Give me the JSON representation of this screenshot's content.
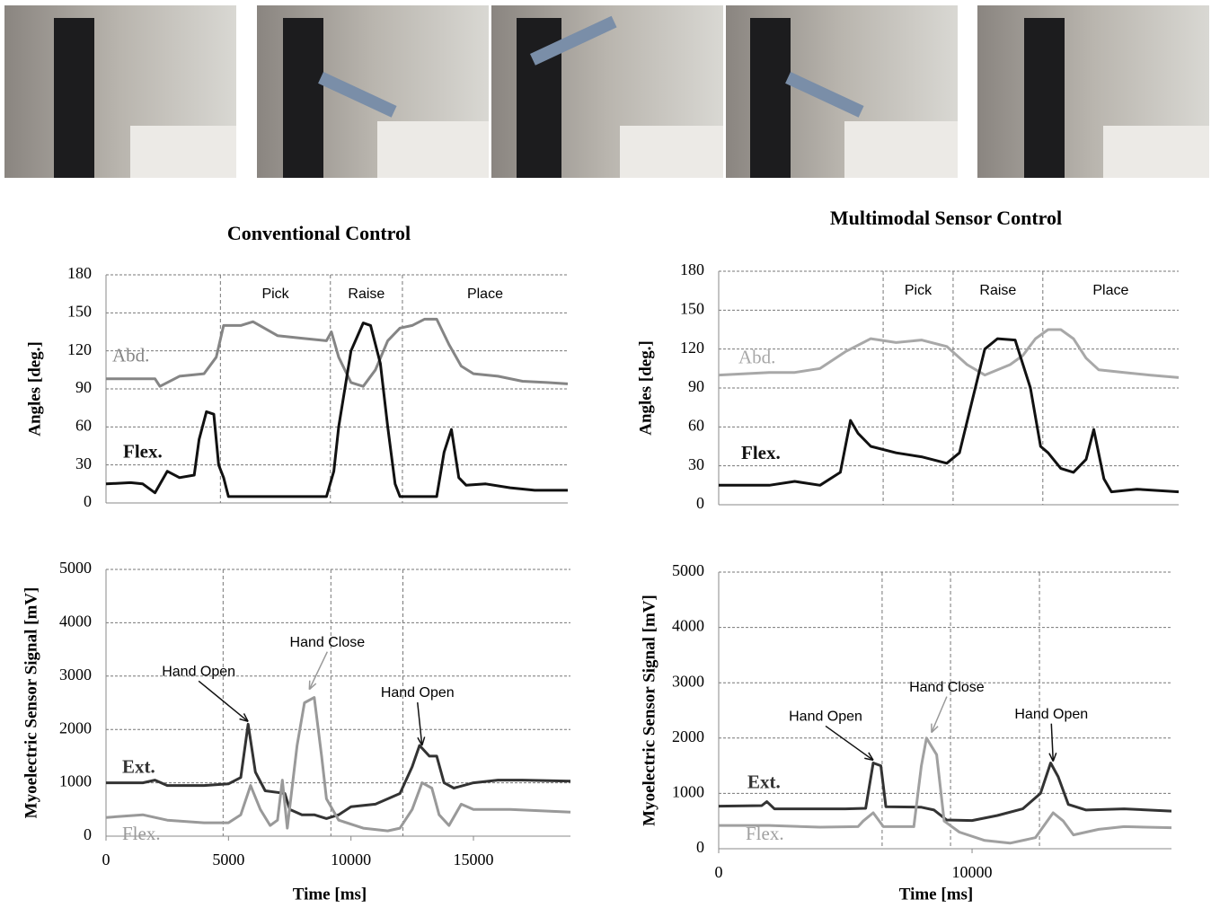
{
  "chart_data": [
    {
      "type": "line",
      "title": "Conventional Control",
      "ylabel": "Angles [deg.]",
      "xlim": [
        0,
        18850
      ],
      "ylim": [
        0,
        180
      ],
      "yticks": [
        0,
        30,
        60,
        90,
        120,
        150,
        180
      ],
      "grid": true,
      "vlines": [
        4670,
        9160,
        12100
      ],
      "phase_labels": [
        "Pick",
        "Raise",
        "Place"
      ],
      "series": [
        {
          "name": "Abd.",
          "color": "#858585",
          "x": [
            0,
            2000,
            2200,
            3000,
            4000,
            4500,
            4800,
            5500,
            6000,
            7000,
            8000,
            9000,
            9200,
            9500,
            10000,
            10500,
            11000,
            11500,
            12000,
            12500,
            13000,
            13500,
            14000,
            14500,
            15000,
            16000,
            17000,
            18000,
            18850
          ],
          "values": [
            98,
            98,
            92,
            100,
            102,
            115,
            140,
            140,
            143,
            132,
            130,
            128,
            135,
            115,
            95,
            92,
            105,
            128,
            138,
            140,
            145,
            145,
            125,
            108,
            102,
            100,
            96,
            95,
            94
          ]
        },
        {
          "name": "Flex.",
          "color": "#111111",
          "x": [
            0,
            1000,
            1500,
            2000,
            2500,
            3000,
            3600,
            3800,
            4100,
            4400,
            4600,
            4800,
            5000,
            6000,
            7000,
            8000,
            8500,
            9000,
            9300,
            9500,
            10000,
            10500,
            10800,
            11200,
            11500,
            11800,
            12000,
            13000,
            13500,
            13800,
            14100,
            14400,
            14700,
            15500,
            16500,
            17500,
            18850
          ],
          "values": [
            15,
            16,
            15,
            8,
            25,
            20,
            22,
            50,
            72,
            70,
            30,
            20,
            5,
            5,
            5,
            5,
            5,
            5,
            25,
            60,
            120,
            142,
            140,
            110,
            60,
            15,
            5,
            5,
            5,
            40,
            58,
            20,
            14,
            15,
            12,
            10,
            10
          ]
        }
      ]
    },
    {
      "type": "line",
      "title": "Multimodal Sensor Control",
      "ylabel": "Angles [deg.]",
      "xlim": [
        0,
        18150
      ],
      "ylim": [
        0,
        180
      ],
      "yticks": [
        0,
        30,
        60,
        90,
        120,
        150,
        180
      ],
      "grid": true,
      "vlines": [
        6490,
        9250,
        12790
      ],
      "phase_labels": [
        "Pick",
        "Raise",
        "Place"
      ],
      "series": [
        {
          "name": "Abd.",
          "color": "#a8a8a8",
          "x": [
            0,
            2000,
            3000,
            4000,
            5000,
            6000,
            7000,
            8000,
            9000,
            9800,
            10500,
            11500,
            12000,
            12500,
            13000,
            13500,
            14000,
            14500,
            15000,
            16000,
            17000,
            18150
          ],
          "values": [
            100,
            102,
            102,
            105,
            118,
            128,
            125,
            127,
            122,
            108,
            100,
            108,
            115,
            128,
            135,
            135,
            128,
            113,
            104,
            102,
            100,
            98
          ]
        },
        {
          "name": "Flex.",
          "color": "#111111",
          "x": [
            0,
            2000,
            3000,
            4000,
            4800,
            5200,
            5500,
            6000,
            7000,
            8000,
            9000,
            9500,
            10000,
            10500,
            11000,
            11700,
            12300,
            12700,
            13000,
            13500,
            14000,
            14500,
            14800,
            15200,
            15500,
            16500,
            18150
          ],
          "values": [
            15,
            15,
            18,
            15,
            25,
            65,
            55,
            45,
            40,
            37,
            32,
            40,
            80,
            120,
            128,
            127,
            90,
            45,
            40,
            28,
            25,
            35,
            58,
            20,
            10,
            12,
            10
          ]
        }
      ]
    },
    {
      "type": "line",
      "ylabel": "Myoelectric Sensor Signal [mV]",
      "xlabel": "Time [ms]",
      "xlim": [
        0,
        18960
      ],
      "ylim": [
        0,
        5000
      ],
      "yticks": [
        0,
        1000,
        2000,
        3000,
        4000,
        5000
      ],
      "xticks": [
        0,
        5000,
        10000,
        15000
      ],
      "grid": true,
      "vlines": [
        4780,
        9180,
        12120
      ],
      "annotations": [
        {
          "text": "Hand Open",
          "x": 5800,
          "y": 2150
        },
        {
          "text": "Hand Close",
          "x": 8300,
          "y": 2750
        },
        {
          "text": "Hand Open",
          "x": 12900,
          "y": 1700
        }
      ],
      "series": [
        {
          "name": "Ext.",
          "color": "#333333",
          "x": [
            0,
            1500,
            2000,
            2500,
            4000,
            5000,
            5500,
            5800,
            6100,
            6500,
            7000,
            7300,
            7500,
            8000,
            8500,
            9000,
            9500,
            10000,
            11000,
            12000,
            12500,
            12800,
            13200,
            13500,
            13800,
            14200,
            15000,
            16000,
            17000,
            18960
          ],
          "values": [
            1000,
            1000,
            1050,
            950,
            950,
            980,
            1100,
            2100,
            1200,
            850,
            820,
            800,
            500,
            400,
            400,
            330,
            400,
            550,
            600,
            800,
            1300,
            1700,
            1500,
            1500,
            1000,
            900,
            1000,
            1050,
            1050,
            1030
          ]
        },
        {
          "name": "Flex.",
          "color": "#999999",
          "x": [
            0,
            1500,
            2500,
            4000,
            5000,
            5500,
            5900,
            6300,
            6700,
            7000,
            7200,
            7400,
            7800,
            8100,
            8500,
            8800,
            9000,
            9500,
            10500,
            11500,
            12000,
            12500,
            12900,
            13300,
            13600,
            14000,
            14500,
            15000,
            16500,
            18960
          ],
          "values": [
            350,
            400,
            300,
            250,
            250,
            400,
            950,
            500,
            200,
            300,
            1050,
            150,
            1700,
            2500,
            2600,
            1500,
            700,
            300,
            150,
            100,
            150,
            500,
            1000,
            900,
            400,
            200,
            600,
            500,
            500,
            450
          ]
        }
      ]
    },
    {
      "type": "line",
      "ylabel": "Myoelectric Sensor Signal [mV]",
      "xlabel": "Time [ms]",
      "xlim": [
        0,
        17870
      ],
      "ylim": [
        0,
        5000
      ],
      "yticks": [
        0,
        1000,
        2000,
        3000,
        4000,
        5000
      ],
      "xticks": [
        0,
        10000
      ],
      "grid": true,
      "vlines": [
        6450,
        9150,
        12660
      ],
      "annotations": [
        {
          "text": "Hand Open",
          "x": 6100,
          "y": 1600
        },
        {
          "text": "Hand Close",
          "x": 8400,
          "y": 2100
        },
        {
          "text": "Hand Open",
          "x": 13200,
          "y": 1580
        }
      ],
      "series": [
        {
          "name": "Ext.",
          "color": "#333333",
          "x": [
            0,
            1700,
            1900,
            2200,
            5000,
            5800,
            6100,
            6400,
            6600,
            8000,
            8500,
            9000,
            10000,
            11000,
            12000,
            12700,
            13100,
            13400,
            13800,
            14500,
            16000,
            17870
          ],
          "values": [
            770,
            780,
            850,
            720,
            720,
            730,
            1550,
            1500,
            760,
            750,
            700,
            520,
            510,
            600,
            720,
            1000,
            1550,
            1300,
            800,
            700,
            720,
            680
          ]
        },
        {
          "name": "Flex.",
          "color": "#a0a0a0",
          "x": [
            0,
            2000,
            4000,
            5500,
            5700,
            6100,
            6500,
            7700,
            8000,
            8200,
            8600,
            8900,
            9500,
            10500,
            11500,
            12500,
            13200,
            13600,
            14000,
            15000,
            16000,
            17870
          ],
          "values": [
            420,
            420,
            390,
            400,
            500,
            650,
            400,
            400,
            1500,
            2000,
            1700,
            500,
            300,
            150,
            100,
            200,
            650,
            500,
            250,
            350,
            400,
            380
          ]
        }
      ]
    }
  ]
}
